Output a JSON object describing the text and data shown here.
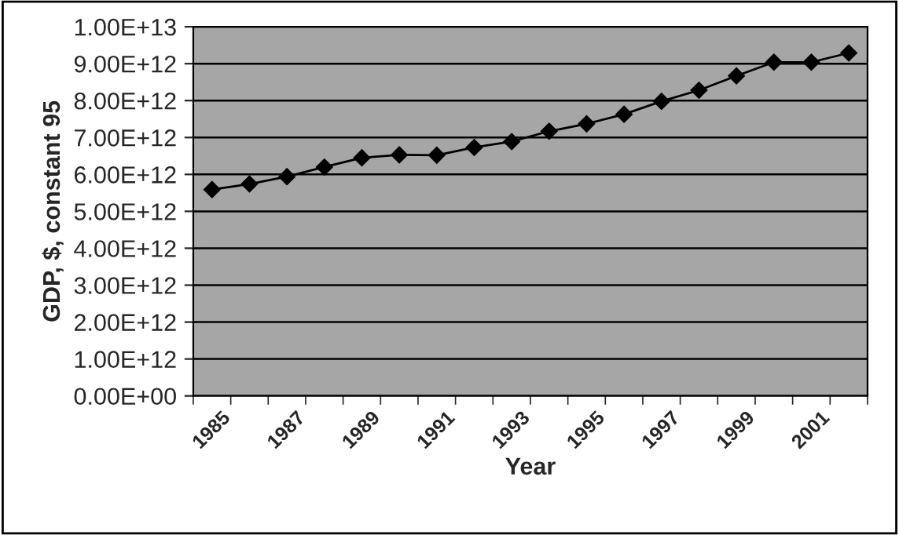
{
  "chart_data": {
    "type": "line",
    "xlabel": "Year",
    "ylabel": "GDP, $, constant 95",
    "categories": [
      "1985",
      null,
      "1987",
      null,
      "1989",
      null,
      "1991",
      null,
      "1993",
      null,
      "1995",
      null,
      "1997",
      null,
      "1999",
      null,
      "2001",
      null
    ],
    "series": [
      {
        "color": "#000000",
        "values": [
          5590000000000.0,
          5740000000000.0,
          5940000000000.0,
          6200000000000.0,
          6450000000000.0,
          6530000000000.0,
          6520000000000.0,
          6730000000000.0,
          6890000000000.0,
          7170000000000.0,
          7370000000000.0,
          7630000000000.0,
          7980000000000.0,
          8280000000000.0,
          8670000000000.0,
          9040000000000.0,
          9040000000000.0,
          9290000000000.0
        ]
      }
    ],
    "ylim": [
      0,
      10000000000000.0
    ],
    "yticks": [
      {
        "value": 0,
        "label": "0.00E+00"
      },
      {
        "value": 1000000000000.0,
        "label": "1.00E+12"
      },
      {
        "value": 2000000000000.0,
        "label": "2.00E+12"
      },
      {
        "value": 3000000000000.0,
        "label": "3.00E+12"
      },
      {
        "value": 4000000000000.0,
        "label": "4.00E+12"
      },
      {
        "value": 5000000000000.0,
        "label": "5.00E+12"
      },
      {
        "value": 6000000000000.0,
        "label": "6.00E+12"
      },
      {
        "value": 7000000000000.0,
        "label": "7.00E+12"
      },
      {
        "value": 8000000000000.0,
        "label": "8.00E+12"
      },
      {
        "value": 9000000000000.0,
        "label": "9.00E+12"
      },
      {
        "value": 10000000000000.0,
        "label": "1.00E+13"
      }
    ],
    "grid": "y",
    "marker": "diamond",
    "line_style": "solid",
    "legend": false
  }
}
